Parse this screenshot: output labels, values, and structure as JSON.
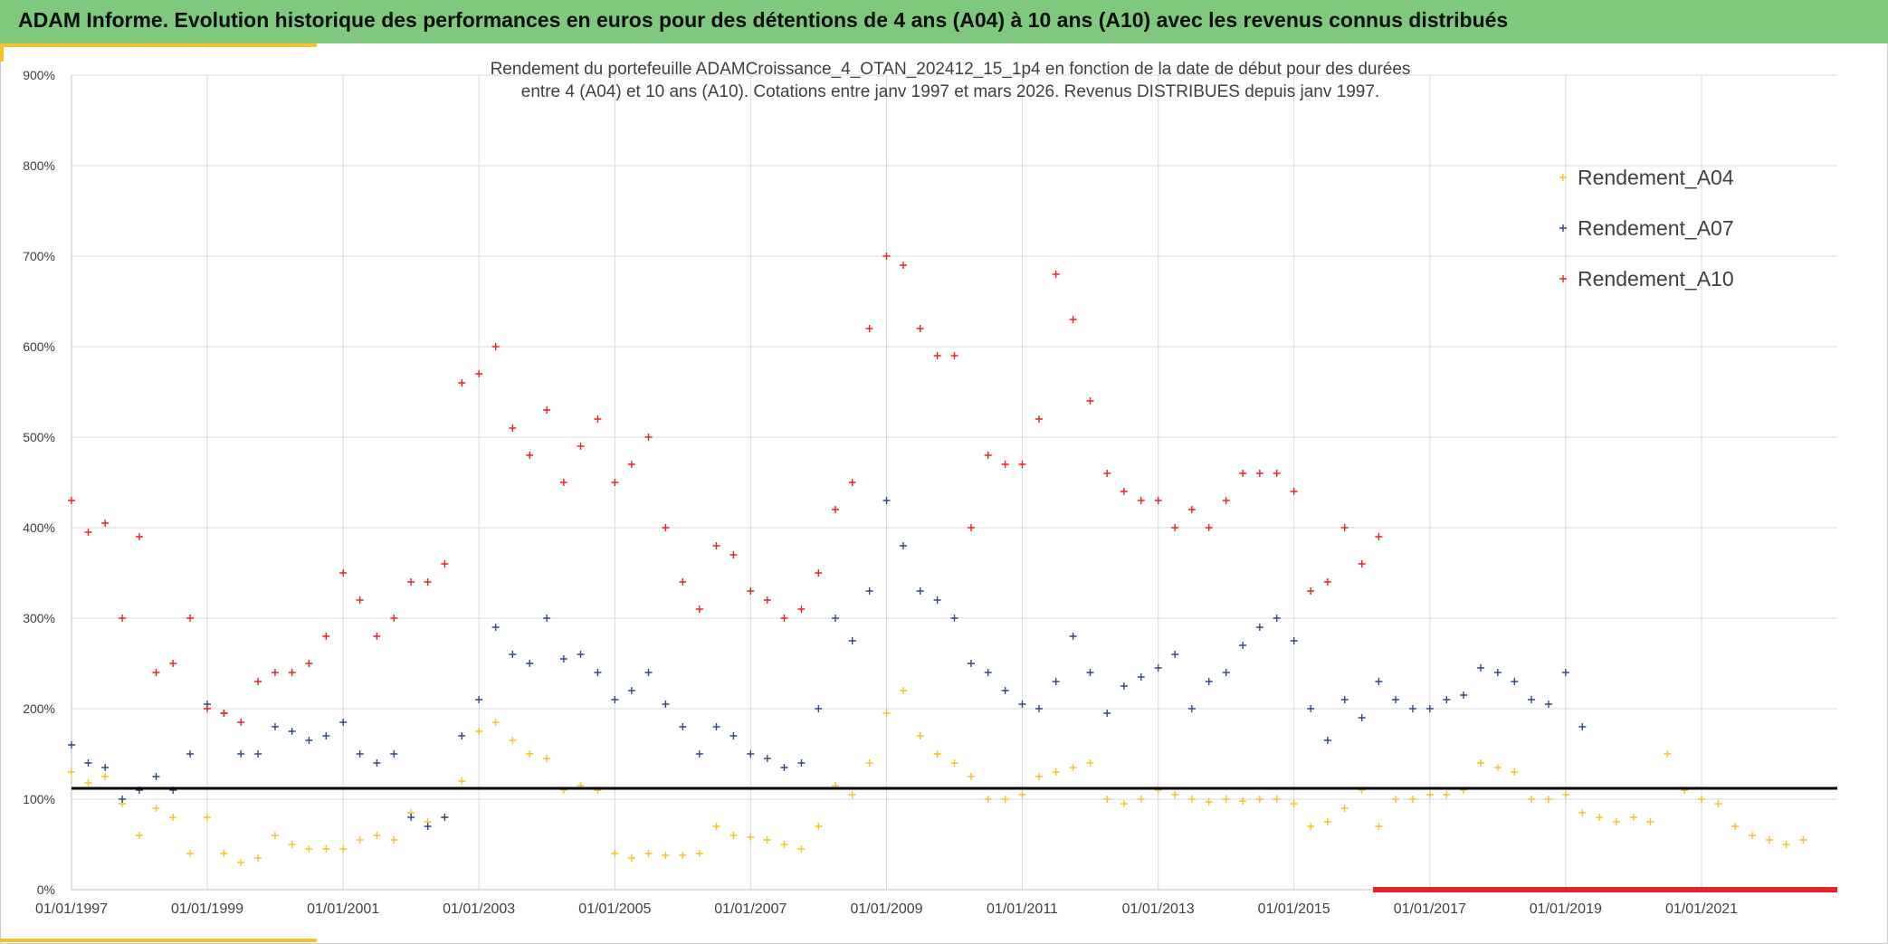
{
  "banner": {
    "title": "ADAM Informe. Evolution historique des performances en euros pour des détentions de 4 ans (A04) à 10 ans (A10) avec les revenus connus distribués"
  },
  "colors": {
    "banner_bg": "#7fc97f",
    "accent": "#f4c22b",
    "a04": "#f5c12e",
    "a07": "#2f4a7a",
    "a10": "#e3242b",
    "reference_line": "#000000",
    "grid": "#d9d9d9"
  },
  "chart_data": {
    "type": "scatter",
    "marker": "plus",
    "title_lines": [
      "Rendement du portefeuille ADAMCroissance_4_OTAN_202412_15_1p4  en fonction de la date de début pour des durées",
      "entre 4 (A04) et 10 ans (A10). Cotations entre janv 1997 et mars 2026. Revenus DISTRIBUES depuis janv 1997."
    ],
    "xlabel": "",
    "ylabel": "",
    "x_axis": {
      "type": "date",
      "range": [
        "1997-01-01",
        "2023-01-01"
      ],
      "ticks": [
        "01/01/1997",
        "01/01/1999",
        "01/01/2001",
        "01/01/2003",
        "01/01/2005",
        "01/01/2007",
        "01/01/2009",
        "01/01/2011",
        "01/01/2013",
        "01/01/2015",
        "01/01/2017",
        "01/01/2019",
        "01/01/2021"
      ]
    },
    "y_axis": {
      "range": [
        0,
        900
      ],
      "unit": "%",
      "ticks": [
        "0%",
        "100%",
        "200%",
        "300%",
        "400%",
        "500%",
        "600%",
        "700%",
        "800%",
        "900%"
      ]
    },
    "grid": true,
    "legend": {
      "position": "top-right"
    },
    "reference_line": {
      "y": 112
    },
    "baseline_band": {
      "series": "Rendement_A10",
      "y": 0,
      "x_from": "2016-03-01",
      "x_to": "2023-01-01"
    },
    "series": [
      {
        "name": "Rendement_A04",
        "points": [
          [
            "1997-01",
            130
          ],
          [
            "1997-04",
            118
          ],
          [
            "1997-07",
            125
          ],
          [
            "1997-10",
            95
          ],
          [
            "1998-01",
            60
          ],
          [
            "1998-04",
            90
          ],
          [
            "1998-07",
            80
          ],
          [
            "1998-10",
            40
          ],
          [
            "1999-01",
            80
          ],
          [
            "1999-04",
            40
          ],
          [
            "1999-07",
            30
          ],
          [
            "1999-10",
            35
          ],
          [
            "2000-01",
            60
          ],
          [
            "2000-04",
            50
          ],
          [
            "2000-07",
            45
          ],
          [
            "2000-10",
            45
          ],
          [
            "2001-01",
            45
          ],
          [
            "2001-04",
            55
          ],
          [
            "2001-07",
            60
          ],
          [
            "2001-10",
            55
          ],
          [
            "2002-01",
            85
          ],
          [
            "2002-04",
            75
          ],
          [
            "2002-07",
            80
          ],
          [
            "2002-10",
            120
          ],
          [
            "2003-01",
            175
          ],
          [
            "2003-04",
            185
          ],
          [
            "2003-07",
            165
          ],
          [
            "2003-10",
            150
          ],
          [
            "2004-01",
            145
          ],
          [
            "2004-04",
            110
          ],
          [
            "2004-07",
            115
          ],
          [
            "2004-10",
            110
          ],
          [
            "2005-01",
            40
          ],
          [
            "2005-04",
            35
          ],
          [
            "2005-07",
            40
          ],
          [
            "2005-10",
            38
          ],
          [
            "2006-01",
            38
          ],
          [
            "2006-04",
            40
          ],
          [
            "2006-07",
            70
          ],
          [
            "2006-10",
            60
          ],
          [
            "2007-01",
            58
          ],
          [
            "2007-04",
            55
          ],
          [
            "2007-07",
            50
          ],
          [
            "2007-10",
            45
          ],
          [
            "2008-01",
            70
          ],
          [
            "2008-04",
            115
          ],
          [
            "2008-07",
            105
          ],
          [
            "2008-10",
            140
          ],
          [
            "2009-01",
            195
          ],
          [
            "2009-04",
            220
          ],
          [
            "2009-07",
            170
          ],
          [
            "2009-10",
            150
          ],
          [
            "2010-01",
            140
          ],
          [
            "2010-04",
            125
          ],
          [
            "2010-07",
            100
          ],
          [
            "2010-10",
            100
          ],
          [
            "2011-01",
            105
          ],
          [
            "2011-04",
            125
          ],
          [
            "2011-07",
            130
          ],
          [
            "2011-10",
            135
          ],
          [
            "2012-01",
            140
          ],
          [
            "2012-04",
            100
          ],
          [
            "2012-07",
            95
          ],
          [
            "2012-10",
            100
          ],
          [
            "2013-01",
            110
          ],
          [
            "2013-04",
            105
          ],
          [
            "2013-07",
            100
          ],
          [
            "2013-10",
            97
          ],
          [
            "2014-01",
            100
          ],
          [
            "2014-04",
            98
          ],
          [
            "2014-07",
            100
          ],
          [
            "2014-10",
            100
          ],
          [
            "2015-01",
            95
          ],
          [
            "2015-04",
            70
          ],
          [
            "2015-07",
            75
          ],
          [
            "2015-10",
            90
          ],
          [
            "2016-01",
            110
          ],
          [
            "2016-04",
            70
          ],
          [
            "2016-07",
            100
          ],
          [
            "2016-10",
            100
          ],
          [
            "2017-01",
            105
          ],
          [
            "2017-04",
            105
          ],
          [
            "2017-07",
            110
          ],
          [
            "2017-10",
            140
          ],
          [
            "2018-01",
            135
          ],
          [
            "2018-04",
            130
          ],
          [
            "2018-07",
            100
          ],
          [
            "2018-10",
            100
          ],
          [
            "2019-01",
            105
          ],
          [
            "2019-04",
            85
          ],
          [
            "2019-07",
            80
          ],
          [
            "2019-10",
            75
          ],
          [
            "2020-01",
            80
          ],
          [
            "2020-04",
            75
          ],
          [
            "2020-07",
            150
          ],
          [
            "2020-10",
            110
          ],
          [
            "2021-01",
            100
          ],
          [
            "2021-04",
            95
          ],
          [
            "2021-07",
            70
          ],
          [
            "2021-10",
            60
          ],
          [
            "2022-01",
            55
          ],
          [
            "2022-04",
            50
          ],
          [
            "2022-07",
            55
          ]
        ]
      },
      {
        "name": "Rendement_A07",
        "points": [
          [
            "1997-01",
            160
          ],
          [
            "1997-04",
            140
          ],
          [
            "1997-07",
            135
          ],
          [
            "1997-10",
            100
          ],
          [
            "1998-01",
            110
          ],
          [
            "1998-04",
            125
          ],
          [
            "1998-07",
            110
          ],
          [
            "1998-10",
            150
          ],
          [
            "1999-01",
            205
          ],
          [
            "1999-04",
            195
          ],
          [
            "1999-07",
            150
          ],
          [
            "1999-10",
            150
          ],
          [
            "2000-01",
            180
          ],
          [
            "2000-04",
            175
          ],
          [
            "2000-07",
            165
          ],
          [
            "2000-10",
            170
          ],
          [
            "2001-01",
            185
          ],
          [
            "2001-04",
            150
          ],
          [
            "2001-07",
            140
          ],
          [
            "2001-10",
            150
          ],
          [
            "2002-01",
            80
          ],
          [
            "2002-04",
            70
          ],
          [
            "2002-07",
            80
          ],
          [
            "2002-10",
            170
          ],
          [
            "2003-01",
            210
          ],
          [
            "2003-04",
            290
          ],
          [
            "2003-07",
            260
          ],
          [
            "2003-10",
            250
          ],
          [
            "2004-01",
            300
          ],
          [
            "2004-04",
            255
          ],
          [
            "2004-07",
            260
          ],
          [
            "2004-10",
            240
          ],
          [
            "2005-01",
            210
          ],
          [
            "2005-04",
            220
          ],
          [
            "2005-07",
            240
          ],
          [
            "2005-10",
            205
          ],
          [
            "2006-01",
            180
          ],
          [
            "2006-04",
            150
          ],
          [
            "2006-07",
            180
          ],
          [
            "2006-10",
            170
          ],
          [
            "2007-01",
            150
          ],
          [
            "2007-04",
            145
          ],
          [
            "2007-07",
            135
          ],
          [
            "2007-10",
            140
          ],
          [
            "2008-01",
            200
          ],
          [
            "2008-04",
            300
          ],
          [
            "2008-07",
            275
          ],
          [
            "2008-10",
            330
          ],
          [
            "2009-01",
            430
          ],
          [
            "2009-04",
            380
          ],
          [
            "2009-07",
            330
          ],
          [
            "2009-10",
            320
          ],
          [
            "2010-01",
            300
          ],
          [
            "2010-04",
            250
          ],
          [
            "2010-07",
            240
          ],
          [
            "2010-10",
            220
          ],
          [
            "2011-01",
            205
          ],
          [
            "2011-04",
            200
          ],
          [
            "2011-07",
            230
          ],
          [
            "2011-10",
            280
          ],
          [
            "2012-01",
            240
          ],
          [
            "2012-04",
            195
          ],
          [
            "2012-07",
            225
          ],
          [
            "2012-10",
            235
          ],
          [
            "2013-01",
            245
          ],
          [
            "2013-04",
            260
          ],
          [
            "2013-07",
            200
          ],
          [
            "2013-10",
            230
          ],
          [
            "2014-01",
            240
          ],
          [
            "2014-04",
            270
          ],
          [
            "2014-07",
            290
          ],
          [
            "2014-10",
            300
          ],
          [
            "2015-01",
            275
          ],
          [
            "2015-04",
            200
          ],
          [
            "2015-07",
            165
          ],
          [
            "2015-10",
            210
          ],
          [
            "2016-01",
            190
          ],
          [
            "2016-04",
            230
          ],
          [
            "2016-07",
            210
          ],
          [
            "2016-10",
            200
          ],
          [
            "2017-01",
            200
          ],
          [
            "2017-04",
            210
          ],
          [
            "2017-07",
            215
          ],
          [
            "2017-10",
            245
          ],
          [
            "2018-01",
            240
          ],
          [
            "2018-04",
            230
          ],
          [
            "2018-07",
            210
          ],
          [
            "2018-10",
            205
          ],
          [
            "2019-01",
            240
          ],
          [
            "2019-04",
            180
          ]
        ]
      },
      {
        "name": "Rendement_A10",
        "points": [
          [
            "1997-01",
            430
          ],
          [
            "1997-04",
            395
          ],
          [
            "1997-07",
            405
          ],
          [
            "1997-10",
            300
          ],
          [
            "1998-01",
            390
          ],
          [
            "1998-04",
            240
          ],
          [
            "1998-07",
            250
          ],
          [
            "1998-10",
            300
          ],
          [
            "1999-01",
            200
          ],
          [
            "1999-04",
            195
          ],
          [
            "1999-07",
            185
          ],
          [
            "1999-10",
            230
          ],
          [
            "2000-01",
            240
          ],
          [
            "2000-04",
            240
          ],
          [
            "2000-07",
            250
          ],
          [
            "2000-10",
            280
          ],
          [
            "2001-01",
            350
          ],
          [
            "2001-04",
            320
          ],
          [
            "2001-07",
            280
          ],
          [
            "2001-10",
            300
          ],
          [
            "2002-01",
            340
          ],
          [
            "2002-04",
            340
          ],
          [
            "2002-07",
            360
          ],
          [
            "2002-10",
            560
          ],
          [
            "2003-01",
            570
          ],
          [
            "2003-04",
            600
          ],
          [
            "2003-07",
            510
          ],
          [
            "2003-10",
            480
          ],
          [
            "2004-01",
            530
          ],
          [
            "2004-04",
            450
          ],
          [
            "2004-07",
            490
          ],
          [
            "2004-10",
            520
          ],
          [
            "2005-01",
            450
          ],
          [
            "2005-04",
            470
          ],
          [
            "2005-07",
            500
          ],
          [
            "2005-10",
            400
          ],
          [
            "2006-01",
            340
          ],
          [
            "2006-04",
            310
          ],
          [
            "2006-07",
            380
          ],
          [
            "2006-10",
            370
          ],
          [
            "2007-01",
            330
          ],
          [
            "2007-04",
            320
          ],
          [
            "2007-07",
            300
          ],
          [
            "2007-10",
            310
          ],
          [
            "2008-01",
            350
          ],
          [
            "2008-04",
            420
          ],
          [
            "2008-07",
            450
          ],
          [
            "2008-10",
            620
          ],
          [
            "2009-01",
            700
          ],
          [
            "2009-04",
            690
          ],
          [
            "2009-07",
            620
          ],
          [
            "2009-10",
            590
          ],
          [
            "2010-01",
            590
          ],
          [
            "2010-04",
            400
          ],
          [
            "2010-07",
            480
          ],
          [
            "2010-10",
            470
          ],
          [
            "2011-01",
            470
          ],
          [
            "2011-04",
            520
          ],
          [
            "2011-07",
            680
          ],
          [
            "2011-10",
            630
          ],
          [
            "2012-01",
            540
          ],
          [
            "2012-04",
            460
          ],
          [
            "2012-07",
            440
          ],
          [
            "2012-10",
            430
          ],
          [
            "2013-01",
            430
          ],
          [
            "2013-04",
            400
          ],
          [
            "2013-07",
            420
          ],
          [
            "2013-10",
            400
          ],
          [
            "2014-01",
            430
          ],
          [
            "2014-04",
            460
          ],
          [
            "2014-07",
            460
          ],
          [
            "2014-10",
            460
          ],
          [
            "2015-01",
            440
          ],
          [
            "2015-04",
            330
          ],
          [
            "2015-07",
            340
          ],
          [
            "2015-10",
            400
          ],
          [
            "2016-01",
            360
          ],
          [
            "2016-04",
            390
          ]
        ]
      }
    ]
  }
}
